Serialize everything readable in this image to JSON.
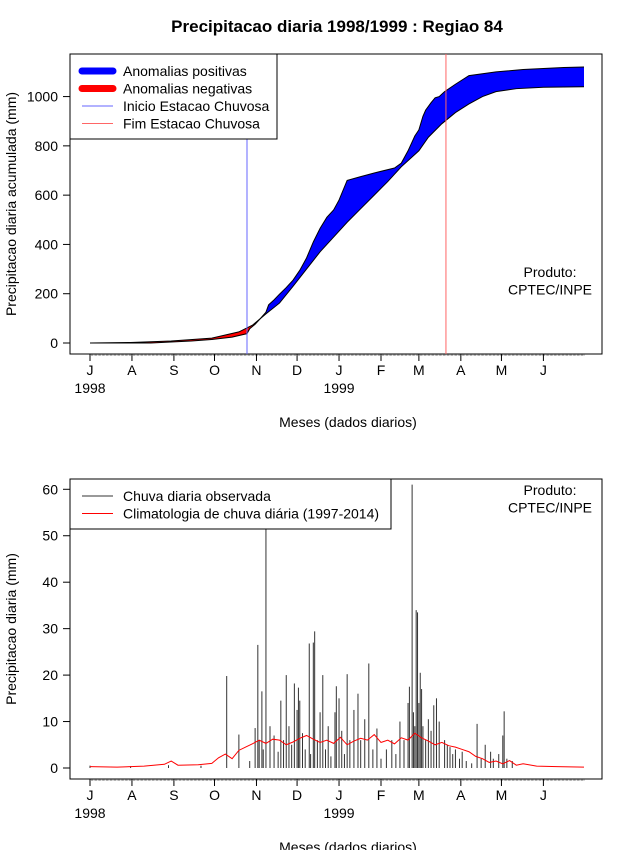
{
  "title": "Precipitacao diaria 1998/1999 : Regiao 84",
  "chart_data": [
    {
      "type": "area",
      "id": "top",
      "xlabel": "Meses (dados diarios)",
      "ylabel": "Precipitacao diaria acumulada (mm)",
      "ylim": [
        0,
        1120
      ],
      "yticks": [
        0,
        200,
        400,
        600,
        800,
        1000
      ],
      "xlim": [
        0,
        365
      ],
      "month_labels": [
        "J",
        "A",
        "S",
        "O",
        "N",
        "D",
        "J",
        "F",
        "M",
        "A",
        "M",
        "J"
      ],
      "month_days": [
        0,
        31,
        62,
        92,
        123,
        153,
        184,
        215,
        243,
        274,
        304,
        335
      ],
      "year_labels": [
        {
          "day": 0,
          "text": "1998"
        },
        {
          "day": 184,
          "text": "1999"
        }
      ],
      "legend": [
        {
          "label": "Anomalias positivas",
          "color": "#0000ff",
          "kind": "thick"
        },
        {
          "label": "Anomalias negativas",
          "color": "#ff0000",
          "kind": "thick"
        },
        {
          "label": "Inicio Estacao Chuvosa",
          "color": "#6666ff",
          "kind": "thin"
        },
        {
          "label": "Fim Estacao Chuvosa",
          "color": "#ff6666",
          "kind": "thin"
        }
      ],
      "annotation": [
        "Produto:",
        "CPTEC/INPE"
      ],
      "onset_day": 116,
      "end_day": 263,
      "observed": [
        [
          0,
          0
        ],
        [
          45,
          0
        ],
        [
          60,
          4
        ],
        [
          75,
          8
        ],
        [
          90,
          14
        ],
        [
          105,
          24
        ],
        [
          116,
          38
        ],
        [
          118,
          58
        ],
        [
          122,
          76
        ],
        [
          126,
          100
        ],
        [
          130,
          125
        ],
        [
          132,
          155
        ],
        [
          136,
          175
        ],
        [
          140,
          198
        ],
        [
          145,
          225
        ],
        [
          150,
          255
        ],
        [
          155,
          295
        ],
        [
          160,
          345
        ],
        [
          165,
          410
        ],
        [
          170,
          465
        ],
        [
          175,
          510
        ],
        [
          180,
          540
        ],
        [
          184,
          580
        ],
        [
          190,
          660
        ],
        [
          200,
          675
        ],
        [
          210,
          690
        ],
        [
          225,
          710
        ],
        [
          230,
          730
        ],
        [
          235,
          780
        ],
        [
          240,
          840
        ],
        [
          243,
          865
        ],
        [
          246,
          920
        ],
        [
          248,
          945
        ],
        [
          252,
          975
        ],
        [
          255,
          995
        ],
        [
          258,
          1000
        ],
        [
          262,
          1020
        ],
        [
          270,
          1050
        ],
        [
          280,
          1085
        ],
        [
          300,
          1100
        ],
        [
          320,
          1110
        ],
        [
          350,
          1118
        ],
        [
          365,
          1120
        ]
      ],
      "climatology": [
        [
          0,
          0
        ],
        [
          30,
          2
        ],
        [
          60,
          8
        ],
        [
          90,
          20
        ],
        [
          110,
          45
        ],
        [
          120,
          72
        ],
        [
          130,
          118
        ],
        [
          140,
          162
        ],
        [
          150,
          230
        ],
        [
          160,
          300
        ],
        [
          170,
          370
        ],
        [
          180,
          430
        ],
        [
          190,
          490
        ],
        [
          200,
          545
        ],
        [
          210,
          600
        ],
        [
          220,
          655
        ],
        [
          230,
          715
        ],
        [
          243,
          780
        ],
        [
          250,
          835
        ],
        [
          260,
          890
        ],
        [
          270,
          935
        ],
        [
          280,
          970
        ],
        [
          290,
          1000
        ],
        [
          300,
          1020
        ],
        [
          315,
          1032
        ],
        [
          335,
          1038
        ],
        [
          365,
          1040
        ]
      ]
    },
    {
      "type": "bar",
      "id": "bottom",
      "xlabel": "Meses (dados diarios)",
      "ylabel": "Precipitacao diaria (mm)",
      "ylim": [
        0,
        62
      ],
      "yticks": [
        0,
        10,
        20,
        30,
        40,
        50,
        60
      ],
      "xlim": [
        0,
        365
      ],
      "month_labels": [
        "J",
        "A",
        "S",
        "O",
        "N",
        "D",
        "J",
        "F",
        "M",
        "A",
        "M",
        "J"
      ],
      "month_days": [
        0,
        31,
        62,
        92,
        123,
        153,
        184,
        215,
        243,
        274,
        304,
        335
      ],
      "year_labels": [
        {
          "day": 0,
          "text": "1998"
        },
        {
          "day": 184,
          "text": "1999"
        }
      ],
      "legend": [
        {
          "label": "Chuva diaria observada",
          "color": "#333333",
          "kind": "thin"
        },
        {
          "label": "Climatologia de chuva diária (1997-2014)",
          "color": "#ff0000",
          "kind": "thin"
        }
      ],
      "annotation": [
        "Produto:",
        "CPTEC/INPE"
      ],
      "daily_rain": [
        [
          0,
          0.5
        ],
        [
          30,
          0.4
        ],
        [
          58,
          0.6
        ],
        [
          82,
          0.5
        ],
        [
          101,
          19.8
        ],
        [
          110,
          7.2
        ],
        [
          118,
          1.5
        ],
        [
          122,
          8.6
        ],
        [
          124,
          26.5
        ],
        [
          125,
          6.0
        ],
        [
          127,
          16.5
        ],
        [
          128,
          4.0
        ],
        [
          130,
          52.0
        ],
        [
          133,
          9.0
        ],
        [
          136,
          7.0
        ],
        [
          139,
          3.5
        ],
        [
          141,
          14.5
        ],
        [
          143,
          6.0
        ],
        [
          145,
          20.0
        ],
        [
          147,
          9.0
        ],
        [
          149,
          5.0
        ],
        [
          151,
          18.2
        ],
        [
          153,
          12.5
        ],
        [
          154,
          17.3
        ],
        [
          155,
          14.5
        ],
        [
          157,
          7.5
        ],
        [
          159,
          4.0
        ],
        [
          162,
          26.8
        ],
        [
          163,
          3.0
        ],
        [
          165,
          27.0
        ],
        [
          166,
          29.4
        ],
        [
          168,
          6.0
        ],
        [
          170,
          12.0
        ],
        [
          172,
          20.0
        ],
        [
          174,
          4.0
        ],
        [
          176,
          9.0
        ],
        [
          178,
          2.5
        ],
        [
          181,
          12.0
        ],
        [
          182,
          17.6
        ],
        [
          184,
          15.0
        ],
        [
          186,
          8.0
        ],
        [
          188,
          3.0
        ],
        [
          190,
          20.2
        ],
        [
          192,
          6.0
        ],
        [
          195,
          12.5
        ],
        [
          198,
          16.0
        ],
        [
          200,
          6.0
        ],
        [
          203,
          10.5
        ],
        [
          206,
          22.5
        ],
        [
          209,
          4.0
        ],
        [
          212,
          8.5
        ],
        [
          215,
          2.0
        ],
        [
          219,
          4.0
        ],
        [
          223,
          6.0
        ],
        [
          226,
          3.0
        ],
        [
          229,
          10.0
        ],
        [
          232,
          6.0
        ],
        [
          235,
          14.0
        ],
        [
          236,
          17.5
        ],
        [
          238,
          61.0
        ],
        [
          239,
          12.0
        ],
        [
          240,
          9.0
        ],
        [
          241,
          34.0
        ],
        [
          242,
          33.5
        ],
        [
          243,
          14.0
        ],
        [
          244,
          20.5
        ],
        [
          245,
          17.0
        ],
        [
          246,
          9.0
        ],
        [
          248,
          6.0
        ],
        [
          250,
          10.5
        ],
        [
          252,
          8.0
        ],
        [
          254,
          13.5
        ],
        [
          256,
          15.0
        ],
        [
          258,
          10.0
        ],
        [
          262,
          6.0
        ],
        [
          264,
          5.0
        ],
        [
          266,
          4.5
        ],
        [
          268,
          3.0
        ],
        [
          270,
          4.0
        ],
        [
          273,
          2.0
        ],
        [
          275,
          3.5
        ],
        [
          278,
          1.5
        ],
        [
          282,
          1.0
        ],
        [
          286,
          9.5
        ],
        [
          289,
          2.0
        ],
        [
          292,
          5.0
        ],
        [
          296,
          3.5
        ],
        [
          298,
          2.0
        ],
        [
          302,
          3.0
        ],
        [
          305,
          7.0
        ],
        [
          306,
          12.2
        ],
        [
          308,
          2.0
        ],
        [
          312,
          1.5
        ]
      ],
      "climatology": [
        [
          0,
          0.3
        ],
        [
          20,
          0.2
        ],
        [
          40,
          0.4
        ],
        [
          55,
          0.8
        ],
        [
          60,
          1.5
        ],
        [
          65,
          0.6
        ],
        [
          80,
          0.7
        ],
        [
          90,
          1.0
        ],
        [
          95,
          2.2
        ],
        [
          100,
          3.0
        ],
        [
          105,
          2.0
        ],
        [
          110,
          3.8
        ],
        [
          115,
          4.5
        ],
        [
          120,
          5.2
        ],
        [
          125,
          6.0
        ],
        [
          130,
          5.3
        ],
        [
          135,
          6.2
        ],
        [
          140,
          6.0
        ],
        [
          145,
          5.0
        ],
        [
          150,
          5.6
        ],
        [
          155,
          6.4
        ],
        [
          160,
          7.0
        ],
        [
          165,
          6.2
        ],
        [
          170,
          5.5
        ],
        [
          175,
          6.0
        ],
        [
          180,
          5.3
        ],
        [
          185,
          6.6
        ],
        [
          190,
          5.0
        ],
        [
          195,
          5.8
        ],
        [
          200,
          6.4
        ],
        [
          205,
          6.0
        ],
        [
          210,
          7.2
        ],
        [
          215,
          5.5
        ],
        [
          220,
          6.0
        ],
        [
          225,
          5.2
        ],
        [
          230,
          6.5
        ],
        [
          235,
          6.0
        ],
        [
          240,
          7.5
        ],
        [
          245,
          6.5
        ],
        [
          250,
          5.8
        ],
        [
          255,
          5.0
        ],
        [
          260,
          5.5
        ],
        [
          265,
          4.8
        ],
        [
          270,
          4.5
        ],
        [
          275,
          4.0
        ],
        [
          280,
          3.5
        ],
        [
          285,
          2.5
        ],
        [
          290,
          2.0
        ],
        [
          295,
          1.2
        ],
        [
          300,
          1.5
        ],
        [
          305,
          0.9
        ],
        [
          310,
          1.6
        ],
        [
          315,
          0.6
        ],
        [
          320,
          0.9
        ],
        [
          330,
          0.4
        ],
        [
          345,
          0.3
        ],
        [
          365,
          0.2
        ]
      ]
    }
  ]
}
